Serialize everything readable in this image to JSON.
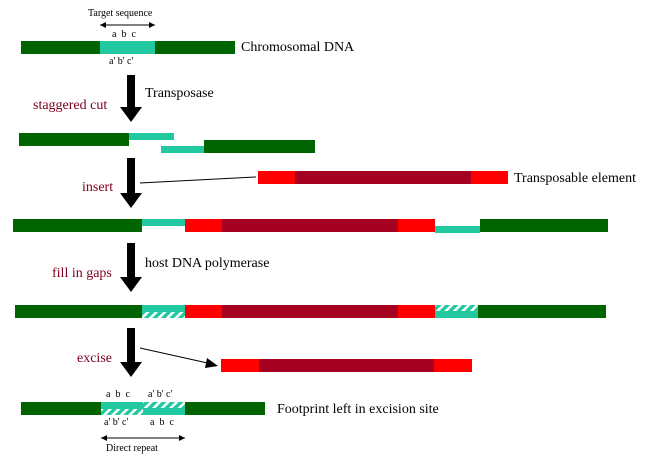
{
  "labels": {
    "target_sequence": "Target sequence",
    "abc_top": "a  b  c",
    "abc_prime_top": "a' b' c'",
    "chromosomal_dna": "Chromosomal DNA",
    "transposase": "Transposase",
    "staggered_cut": "staggered cut",
    "insert": "insert",
    "transposable_element": "Transposable element",
    "host_dna_polymerase": "host DNA polymerase",
    "fill_in_gaps": "fill in gaps",
    "excise": "excise",
    "footprint": "Footprint left in excision site",
    "bottom_abc_left": "a  b  c",
    "bottom_abc_prime_right": "a' b' c'",
    "bottom_abc_prime_left": "a' b' c'",
    "bottom_abc_right": "a  b  c",
    "direct_repeat": "Direct repeat"
  },
  "colors": {
    "chromosome": "#006400",
    "target": "#22c9a0",
    "te_end": "#ff0000",
    "te_body": "#a50021",
    "step_text": "#800020",
    "arrow": "#000000"
  }
}
